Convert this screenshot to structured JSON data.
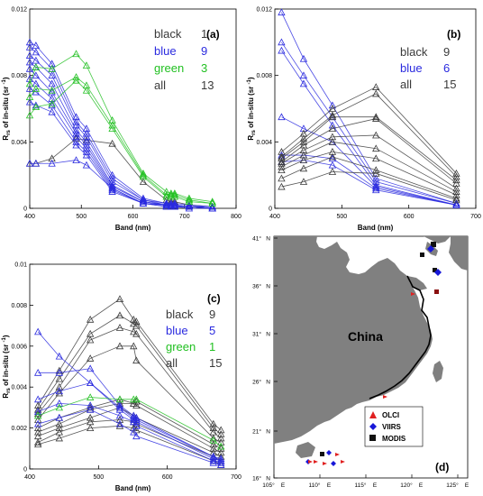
{
  "colors": {
    "black": "#3a3a3a",
    "blue": "#2a2adf",
    "green": "#22c022",
    "land": "#808080",
    "sea": "#ffffff",
    "olci": "#e02020",
    "viirs": "#1818d8",
    "modis": "#111111"
  },
  "chart_data": [
    {
      "type": "line",
      "panel_label": "(a)",
      "xlabel": "Band (nm)",
      "ylabel": "Rrs of in-situ (sr -1)",
      "ylabel_main": "R",
      "ylabel_sub": "rs",
      "ylabel_rest": " of in-situ (sr ",
      "ylabel_sup": "-1",
      "ylabel_close": ")",
      "xlim": [
        400,
        800
      ],
      "ylim": [
        0,
        0.012
      ],
      "xticks": [
        "400",
        "500",
        "600",
        "700",
        "800"
      ],
      "yticks": [
        "0",
        "0.004",
        "0.008",
        "0.012"
      ],
      "legend": [
        {
          "name": "black",
          "count": "1",
          "color": "black"
        },
        {
          "name": "blue",
          "count": "9",
          "color": "blue"
        },
        {
          "name": "green",
          "count": "3",
          "color": "green"
        },
        {
          "name": "all",
          "count": "13",
          "color": "black"
        }
      ],
      "x": [
        400,
        412,
        443,
        490,
        510,
        560,
        620,
        665,
        674,
        681,
        709,
        754
      ],
      "series": [
        {
          "color": "black",
          "values": [
            0.0027,
            0.0027,
            0.003,
            0.0042,
            0.0041,
            0.0039,
            0.0016,
            0.0005,
            0.0004,
            0.0004,
            0.0002,
            0.0001
          ]
        },
        {
          "color": "blue",
          "values": [
            0.01,
            0.0098,
            0.0087,
            0.0055,
            0.0048,
            0.002,
            0.0006,
            0.0003,
            0.0003,
            0.0003,
            0.0002,
            0.0001
          ]
        },
        {
          "color": "blue",
          "values": [
            0.0097,
            0.0094,
            0.0084,
            0.0052,
            0.0045,
            0.0018,
            0.0005,
            0.0003,
            0.0002,
            0.0002,
            0.0001,
            0.0001
          ]
        },
        {
          "color": "blue",
          "values": [
            0.0092,
            0.0089,
            0.008,
            0.005,
            0.0043,
            0.0016,
            0.0005,
            0.0002,
            0.0002,
            0.0002,
            0.0001,
            0.0001
          ]
        },
        {
          "color": "blue",
          "values": [
            0.0088,
            0.0085,
            0.0075,
            0.0047,
            0.004,
            0.0014,
            0.0004,
            0.0002,
            0.0002,
            0.0002,
            0.0001,
            0.0
          ]
        },
        {
          "color": "blue",
          "values": [
            0.0084,
            0.008,
            0.007,
            0.0045,
            0.0038,
            0.0013,
            0.0004,
            0.0002,
            0.0002,
            0.0001,
            0.0001,
            0.0
          ]
        },
        {
          "color": "blue",
          "values": [
            0.0078,
            0.0075,
            0.0066,
            0.0043,
            0.0036,
            0.0012,
            0.0003,
            0.0002,
            0.0001,
            0.0001,
            0.0001,
            0.0
          ]
        },
        {
          "color": "blue",
          "values": [
            0.0072,
            0.007,
            0.0062,
            0.004,
            0.0034,
            0.0011,
            0.0003,
            0.0001,
            0.0001,
            0.0001,
            0.0001,
            0.0
          ]
        },
        {
          "color": "blue",
          "values": [
            0.0064,
            0.0062,
            0.0058,
            0.0038,
            0.0032,
            0.001,
            0.0003,
            0.0001,
            0.0001,
            0.0001,
            0.0,
            0.0
          ]
        },
        {
          "color": "blue",
          "values": [
            0.0027,
            0.0027,
            0.0027,
            0.0029,
            0.0026,
            0.0012,
            0.0003,
            0.0002,
            0.0001,
            0.0001,
            0.0001,
            0.0
          ]
        },
        {
          "color": "green",
          "values": [
            0.0075,
            0.0085,
            0.0084,
            0.0093,
            0.0086,
            0.0053,
            0.0021,
            0.001,
            0.0009,
            0.0009,
            0.0006,
            0.0004
          ]
        },
        {
          "color": "green",
          "values": [
            0.0067,
            0.0072,
            0.0071,
            0.0079,
            0.0074,
            0.005,
            0.002,
            0.0008,
            0.0008,
            0.0008,
            0.0005,
            0.0003
          ]
        },
        {
          "color": "green",
          "values": [
            0.0056,
            0.0061,
            0.0063,
            0.0077,
            0.0071,
            0.0048,
            0.0019,
            0.0007,
            0.0007,
            0.0007,
            0.0004,
            0.0003
          ]
        }
      ]
    },
    {
      "type": "line",
      "panel_label": "(b)",
      "xlabel": "Band (nm)",
      "ylabel": "Rrs of in-situ (sr -1)",
      "ylabel_main": "R",
      "ylabel_sub": "rs",
      "ylabel_rest": " of in-situ (sr ",
      "ylabel_sup": "-1",
      "ylabel_close": ")",
      "xlim": [
        400,
        700
      ],
      "ylim": [
        0,
        0.012
      ],
      "xticks": [
        "400",
        "500",
        "600",
        "700"
      ],
      "yticks": [
        "0",
        "0.004",
        "0.008",
        "0.012"
      ],
      "legend": [
        {
          "name": "black",
          "count": "9",
          "color": "black"
        },
        {
          "name": "blue",
          "count": "6",
          "color": "blue"
        },
        {
          "name": "all",
          "count": "15",
          "color": "black"
        }
      ],
      "x": [
        410,
        443,
        486,
        551,
        671
      ],
      "series": [
        {
          "color": "blue",
          "values": [
            0.0118,
            0.009,
            0.0062,
            0.0018,
            0.0003
          ]
        },
        {
          "color": "blue",
          "values": [
            0.01,
            0.008,
            0.0055,
            0.0016,
            0.0003
          ]
        },
        {
          "color": "blue",
          "values": [
            0.0095,
            0.0075,
            0.005,
            0.0014,
            0.0002
          ]
        },
        {
          "color": "blue",
          "values": [
            0.0055,
            0.0048,
            0.004,
            0.0013,
            0.0002
          ]
        },
        {
          "color": "blue",
          "values": [
            0.0032,
            0.0032,
            0.003,
            0.0012,
            0.0002
          ]
        },
        {
          "color": "blue",
          "values": [
            0.0028,
            0.0029,
            0.0026,
            0.0011,
            0.0002
          ]
        },
        {
          "color": "black",
          "values": [
            0.0034,
            0.0045,
            0.006,
            0.0073,
            0.0021
          ]
        },
        {
          "color": "black",
          "values": [
            0.0031,
            0.0042,
            0.0056,
            0.0069,
            0.0019
          ]
        },
        {
          "color": "black",
          "values": [
            0.003,
            0.004,
            0.0055,
            0.0055,
            0.0017
          ]
        },
        {
          "color": "black",
          "values": [
            0.0028,
            0.0038,
            0.0048,
            0.0054,
            0.0015
          ]
        },
        {
          "color": "black",
          "values": [
            0.0027,
            0.0035,
            0.0043,
            0.0044,
            0.0012
          ]
        },
        {
          "color": "black",
          "values": [
            0.0025,
            0.0032,
            0.004,
            0.0036,
            0.001
          ]
        },
        {
          "color": "black",
          "values": [
            0.0023,
            0.0029,
            0.0034,
            0.003,
            0.0008
          ]
        },
        {
          "color": "black",
          "values": [
            0.0018,
            0.0024,
            0.0031,
            0.0023,
            0.0006
          ]
        },
        {
          "color": "black",
          "values": [
            0.0013,
            0.0016,
            0.0022,
            0.0021,
            0.0005
          ]
        }
      ]
    },
    {
      "type": "line",
      "panel_label": "(c)",
      "xlabel": "Band (nm)",
      "ylabel": "Rrs of in-situ (sr -1)",
      "ylabel_main": "R",
      "ylabel_sub": "rs",
      "ylabel_rest": " of in-situ (sr ",
      "ylabel_sup": "-1",
      "ylabel_close": ")",
      "xlim": [
        400,
        700
      ],
      "ylim": [
        0,
        0.01
      ],
      "xticks": [
        "400",
        "500",
        "600",
        "700"
      ],
      "yticks": [
        "0",
        "0.002",
        "0.004",
        "0.006",
        "0.008",
        "0.01"
      ],
      "legend": [
        {
          "name": "black",
          "count": "9",
          "color": "black"
        },
        {
          "name": "blue",
          "count": "5",
          "color": "blue"
        },
        {
          "name": "green",
          "count": "1",
          "color": "green"
        },
        {
          "name": "all",
          "count": "15",
          "color": "black"
        }
      ],
      "x": [
        412,
        443,
        488,
        531,
        551,
        555,
        667,
        678
      ],
      "series": [
        {
          "color": "black",
          "values": [
            0.0031,
            0.0048,
            0.0073,
            0.0083,
            0.0073,
            0.0072,
            0.0022,
            0.0019
          ]
        },
        {
          "color": "black",
          "values": [
            0.0029,
            0.0044,
            0.0066,
            0.0075,
            0.0071,
            0.007,
            0.002,
            0.0017
          ]
        },
        {
          "color": "black",
          "values": [
            0.0027,
            0.004,
            0.0063,
            0.0069,
            0.0067,
            0.0066,
            0.0018,
            0.0015
          ]
        },
        {
          "color": "black",
          "values": [
            0.0024,
            0.0037,
            0.0054,
            0.006,
            0.006,
            0.0053,
            0.0015,
            0.0013
          ]
        },
        {
          "color": "black",
          "values": [
            0.002,
            0.0025,
            0.003,
            0.0034,
            0.0032,
            0.0033,
            0.0012,
            0.001
          ]
        },
        {
          "color": "black",
          "values": [
            0.0018,
            0.0022,
            0.0029,
            0.0032,
            0.0032,
            0.0031,
            0.001,
            0.0008
          ]
        },
        {
          "color": "black",
          "values": [
            0.0016,
            0.002,
            0.0025,
            0.003,
            0.0026,
            0.0025,
            0.0008,
            0.0006
          ]
        },
        {
          "color": "black",
          "values": [
            0.0013,
            0.0018,
            0.0023,
            0.0024,
            0.0023,
            0.0022,
            0.0006,
            0.0004
          ]
        },
        {
          "color": "black",
          "values": [
            0.0012,
            0.0015,
            0.002,
            0.0021,
            0.002,
            0.0019,
            0.0004,
            0.0002
          ]
        },
        {
          "color": "blue",
          "values": [
            0.0067,
            0.0055,
            0.0042,
            0.003,
            0.0025,
            0.0024,
            0.0006,
            0.0005
          ]
        },
        {
          "color": "blue",
          "values": [
            0.0047,
            0.0047,
            0.0049,
            0.0031,
            0.0026,
            0.0025,
            0.0006,
            0.0004
          ]
        },
        {
          "color": "blue",
          "values": [
            0.0034,
            0.0038,
            0.0042,
            0.0029,
            0.0024,
            0.0023,
            0.0005,
            0.0004
          ]
        },
        {
          "color": "blue",
          "values": [
            0.0028,
            0.0032,
            0.0031,
            0.0026,
            0.0023,
            0.0021,
            0.0004,
            0.0003
          ]
        },
        {
          "color": "blue",
          "values": [
            0.0022,
            0.0025,
            0.0029,
            0.0022,
            0.0018,
            0.0016,
            0.0003,
            0.0002
          ]
        },
        {
          "color": "green",
          "values": [
            0.0026,
            0.003,
            0.0035,
            0.0034,
            0.0034,
            0.0034,
            0.0014,
            0.0011
          ]
        }
      ]
    }
  ],
  "map": {
    "panel_label": "(d)",
    "country_label": "China",
    "xticks": [
      {
        "deg": "105°",
        "dir": "E"
      },
      {
        "deg": "110°",
        "dir": "E"
      },
      {
        "deg": "115°",
        "dir": "E"
      },
      {
        "deg": "120°",
        "dir": "E"
      },
      {
        "deg": "125°",
        "dir": "E"
      }
    ],
    "yticks": [
      {
        "deg": "41°",
        "dir": "N"
      },
      {
        "deg": "36°",
        "dir": "N"
      },
      {
        "deg": "31°",
        "dir": "N"
      },
      {
        "deg": "26°",
        "dir": "N"
      },
      {
        "deg": "21°",
        "dir": "N"
      },
      {
        "deg": "16°",
        "dir": "N"
      }
    ],
    "legend": [
      {
        "label": "OLCI",
        "symbol": "triangle",
        "color": "olci"
      },
      {
        "label": "VIIRS",
        "symbol": "diamond",
        "color": "viirs"
      },
      {
        "label": "MODIS",
        "symbol": "square",
        "color": "modis"
      }
    ]
  }
}
